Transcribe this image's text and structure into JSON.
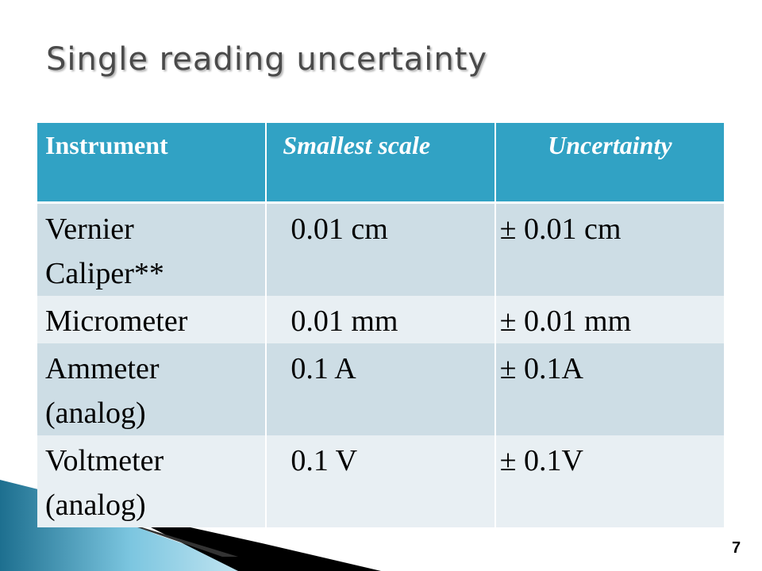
{
  "title": "Single reading uncertainty",
  "table": {
    "header": [
      "Instrument",
      "Smallest scale",
      "Uncertainty"
    ],
    "rows": [
      [
        "Vernier Caliper**",
        "0.01 cm",
        "± 0.01 cm"
      ],
      [
        "Micrometer",
        "0.01 mm",
        "± 0.01 mm"
      ],
      [
        "Ammeter (analog)",
        "0.1 A",
        "± 0.1A"
      ],
      [
        "Voltmeter (analog)",
        "0.1 V",
        "± 0.1V"
      ]
    ]
  },
  "page_number": "7"
}
